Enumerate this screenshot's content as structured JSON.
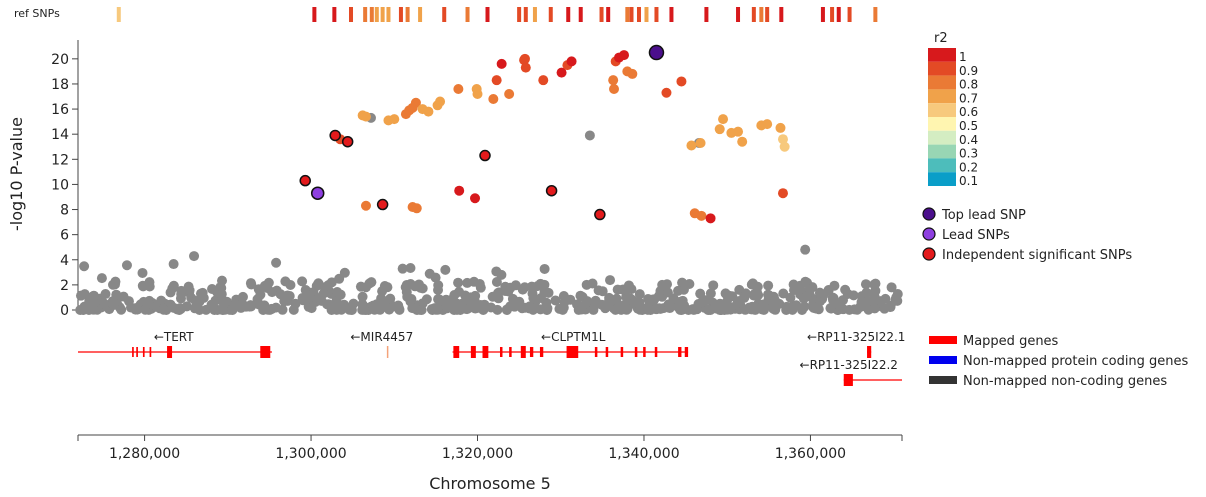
{
  "chart_data": {
    "type": "scatter",
    "title": "",
    "xlabel": "Chromosome 5",
    "ylabel": "-log10 P-value",
    "xlim": [
      1272000,
      1371000
    ],
    "ylim": [
      0,
      21.5
    ],
    "xticks": [
      {
        "value": 1280000,
        "label": "1,280,000"
      },
      {
        "value": 1300000,
        "label": "1,300,000"
      },
      {
        "value": 1320000,
        "label": "1,320,000"
      },
      {
        "value": 1340000,
        "label": "1,340,000"
      },
      {
        "value": 1360000,
        "label": "1,360,000"
      }
    ],
    "yticks": [
      0,
      2,
      4,
      6,
      8,
      10,
      12,
      14,
      16,
      18,
      20
    ],
    "ref_snps_label": "ref SNPs",
    "ref_snps": [
      {
        "x": 1276900,
        "r2": 0.6
      },
      {
        "x": 1300400,
        "r2": 1.0
      },
      {
        "x": 1302800,
        "r2": 1.0
      },
      {
        "x": 1304800,
        "r2": 0.9
      },
      {
        "x": 1306500,
        "r2": 0.8
      },
      {
        "x": 1307300,
        "r2": 0.8
      },
      {
        "x": 1307900,
        "r2": 0.7
      },
      {
        "x": 1308600,
        "r2": 0.7
      },
      {
        "x": 1309300,
        "r2": 0.7
      },
      {
        "x": 1310800,
        "r2": 0.9
      },
      {
        "x": 1311600,
        "r2": 0.8
      },
      {
        "x": 1313100,
        "r2": 0.7
      },
      {
        "x": 1316000,
        "r2": 0.9
      },
      {
        "x": 1318800,
        "r2": 0.8
      },
      {
        "x": 1321200,
        "r2": 1.0
      },
      {
        "x": 1325000,
        "r2": 0.9
      },
      {
        "x": 1325800,
        "r2": 0.9
      },
      {
        "x": 1326900,
        "r2": 0.7
      },
      {
        "x": 1328800,
        "r2": 0.9
      },
      {
        "x": 1330900,
        "r2": 1.0
      },
      {
        "x": 1332400,
        "r2": 1.0
      },
      {
        "x": 1334900,
        "r2": 0.9
      },
      {
        "x": 1335700,
        "r2": 1.0
      },
      {
        "x": 1338000,
        "r2": 0.8
      },
      {
        "x": 1338500,
        "r2": 0.9
      },
      {
        "x": 1339400,
        "r2": 0.9
      },
      {
        "x": 1340300,
        "r2": 0.7
      },
      {
        "x": 1341500,
        "r2": 0.9
      },
      {
        "x": 1343300,
        "r2": 1.0
      },
      {
        "x": 1347500,
        "r2": 1.0
      },
      {
        "x": 1351300,
        "r2": 1.0
      },
      {
        "x": 1353200,
        "r2": 0.9
      },
      {
        "x": 1354100,
        "r2": 0.8
      },
      {
        "x": 1354800,
        "r2": 0.9
      },
      {
        "x": 1356500,
        "r2": 1.0
      },
      {
        "x": 1361500,
        "r2": 1.0
      },
      {
        "x": 1362600,
        "r2": 0.9
      },
      {
        "x": 1363400,
        "r2": 1.0
      },
      {
        "x": 1364700,
        "r2": 0.9
      },
      {
        "x": 1367800,
        "r2": 0.8
      }
    ],
    "r2_legend": {
      "title": "r2",
      "levels": [
        {
          "label": "1",
          "color": "#d7191c"
        },
        {
          "label": "0.9",
          "color": "#e34a25"
        },
        {
          "label": "0.8",
          "color": "#ea7a35"
        },
        {
          "label": "0.7",
          "color": "#f0a24a"
        },
        {
          "label": "0.6",
          "color": "#f7c97d"
        },
        {
          "label": "0.5",
          "color": "#fff5b0"
        },
        {
          "label": "0.4",
          "color": "#d4edc2"
        },
        {
          "label": "0.3",
          "color": "#98d6b4"
        },
        {
          "label": "0.2",
          "color": "#4dbdbb"
        },
        {
          "label": "0.1",
          "color": "#0a9ec8"
        }
      ]
    },
    "snp_legend": [
      {
        "label": "Top lead SNP",
        "color": "#4b0f8c"
      },
      {
        "label": "Lead SNPs",
        "color": "#8e3fe0"
      },
      {
        "label": "Independent significant SNPs",
        "color": "#e31a1c"
      }
    ],
    "gene_legend": [
      {
        "label": "Mapped genes",
        "color": "#ff0000"
      },
      {
        "label": "Non-mapped protein coding genes",
        "color": "#0000ee"
      },
      {
        "label": "Non-mapped non-coding genes",
        "color": "#333333"
      }
    ],
    "colors": {
      "background_snp": "#888888",
      "top_lead": "#4b0f8c",
      "lead": "#8e3fe0",
      "independent": "#e31a1c",
      "gene": "#ff0000",
      "gene_light": "#f4a37a"
    },
    "colored_snps": [
      {
        "x": 1303500,
        "y": 13.6,
        "r2": 0.9
      },
      {
        "x": 1306200,
        "y": 15.5,
        "r2": 0.7
      },
      {
        "x": 1306600,
        "y": 15.4,
        "r2": 0.7
      },
      {
        "x": 1306600,
        "y": 8.3,
        "r2": 0.8
      },
      {
        "x": 1309300,
        "y": 15.1,
        "r2": 0.7
      },
      {
        "x": 1310000,
        "y": 15.2,
        "r2": 0.7
      },
      {
        "x": 1311400,
        "y": 15.6,
        "r2": 0.8
      },
      {
        "x": 1311800,
        "y": 15.9,
        "r2": 0.8
      },
      {
        "x": 1312200,
        "y": 16.1,
        "r2": 0.8
      },
      {
        "x": 1312600,
        "y": 16.5,
        "r2": 0.8
      },
      {
        "x": 1313400,
        "y": 16.0,
        "r2": 0.7
      },
      {
        "x": 1314100,
        "y": 15.8,
        "r2": 0.7
      },
      {
        "x": 1315200,
        "y": 16.3,
        "r2": 0.7
      },
      {
        "x": 1315500,
        "y": 16.6,
        "r2": 0.7
      },
      {
        "x": 1312200,
        "y": 8.2,
        "r2": 0.8
      },
      {
        "x": 1312700,
        "y": 8.1,
        "r2": 0.8
      },
      {
        "x": 1317700,
        "y": 17.6,
        "r2": 0.8
      },
      {
        "x": 1317800,
        "y": 9.5,
        "r2": 1.0
      },
      {
        "x": 1319900,
        "y": 17.6,
        "r2": 0.7
      },
      {
        "x": 1320000,
        "y": 17.2,
        "r2": 0.7
      },
      {
        "x": 1319700,
        "y": 8.9,
        "r2": 1.0
      },
      {
        "x": 1321900,
        "y": 16.8,
        "r2": 0.8
      },
      {
        "x": 1322300,
        "y": 18.3,
        "r2": 0.9
      },
      {
        "x": 1322900,
        "y": 19.6,
        "r2": 1.0
      },
      {
        "x": 1323800,
        "y": 17.2,
        "r2": 0.8
      },
      {
        "x": 1325600,
        "y": 19.9,
        "r2": 0.9
      },
      {
        "x": 1325800,
        "y": 19.3,
        "r2": 0.9
      },
      {
        "x": 1325700,
        "y": 20.0,
        "r2": 0.9
      },
      {
        "x": 1327900,
        "y": 18.3,
        "r2": 0.9
      },
      {
        "x": 1330100,
        "y": 18.9,
        "r2": 1.0
      },
      {
        "x": 1330800,
        "y": 19.5,
        "r2": 0.9
      },
      {
        "x": 1331300,
        "y": 19.8,
        "r2": 1.0
      },
      {
        "x": 1336300,
        "y": 18.3,
        "r2": 0.8
      },
      {
        "x": 1336400,
        "y": 17.6,
        "r2": 0.8
      },
      {
        "x": 1336600,
        "y": 19.8,
        "r2": 0.9
      },
      {
        "x": 1337000,
        "y": 20.1,
        "r2": 1.0
      },
      {
        "x": 1337600,
        "y": 20.3,
        "r2": 1.0
      },
      {
        "x": 1338000,
        "y": 19.0,
        "r2": 0.8
      },
      {
        "x": 1338600,
        "y": 18.8,
        "r2": 0.8
      },
      {
        "x": 1342700,
        "y": 17.3,
        "r2": 0.9
      },
      {
        "x": 1344500,
        "y": 18.2,
        "r2": 0.9
      },
      {
        "x": 1345700,
        "y": 13.1,
        "r2": 0.7
      },
      {
        "x": 1346800,
        "y": 13.3,
        "r2": 0.7
      },
      {
        "x": 1349100,
        "y": 14.4,
        "r2": 0.7
      },
      {
        "x": 1349500,
        "y": 15.2,
        "r2": 0.7
      },
      {
        "x": 1350500,
        "y": 14.1,
        "r2": 0.7
      },
      {
        "x": 1351300,
        "y": 14.2,
        "r2": 0.7
      },
      {
        "x": 1351800,
        "y": 13.4,
        "r2": 0.7
      },
      {
        "x": 1354100,
        "y": 14.7,
        "r2": 0.7
      },
      {
        "x": 1354800,
        "y": 14.8,
        "r2": 0.7
      },
      {
        "x": 1356400,
        "y": 14.5,
        "r2": 0.7
      },
      {
        "x": 1356700,
        "y": 13.6,
        "r2": 0.6
      },
      {
        "x": 1356900,
        "y": 13.0,
        "r2": 0.6
      },
      {
        "x": 1356700,
        "y": 9.3,
        "r2": 0.9
      },
      {
        "x": 1346100,
        "y": 7.7,
        "r2": 0.8
      },
      {
        "x": 1346900,
        "y": 7.5,
        "r2": 0.8
      },
      {
        "x": 1348000,
        "y": 7.3,
        "r2": 1.0
      }
    ],
    "gray_snps_highlight": [
      {
        "x": 1307200,
        "y": 15.3
      },
      {
        "x": 1333500,
        "y": 13.9
      },
      {
        "x": 1346600,
        "y": 13.3
      }
    ],
    "lead_snps": [
      {
        "x": 1341500,
        "y": 20.5,
        "kind": "top_lead"
      },
      {
        "x": 1300800,
        "y": 9.3,
        "kind": "lead"
      },
      {
        "x": 1299300,
        "y": 10.3,
        "kind": "independent"
      },
      {
        "x": 1302900,
        "y": 13.9,
        "kind": "independent"
      },
      {
        "x": 1304400,
        "y": 13.4,
        "kind": "independent"
      },
      {
        "x": 1308600,
        "y": 8.4,
        "kind": "independent"
      },
      {
        "x": 1320900,
        "y": 12.3,
        "kind": "independent"
      },
      {
        "x": 1328900,
        "y": 9.5,
        "kind": "independent"
      },
      {
        "x": 1334700,
        "y": 7.6,
        "kind": "independent"
      }
    ],
    "genes": [
      {
        "name": "←TERT",
        "start": 1272000,
        "end": 1295300,
        "row": 0,
        "exons": [
          [
            1278500,
            1278700
          ],
          [
            1279000,
            1279200
          ],
          [
            1279800,
            1280000
          ],
          [
            1280600,
            1280800
          ],
          [
            1282700,
            1283300
          ],
          [
            1293900,
            1295100
          ]
        ]
      },
      {
        "name": "←MIR4457",
        "start": 1309200,
        "end": 1309400,
        "row": 0,
        "light": true,
        "exons": []
      },
      {
        "name": "←CLPTM1L",
        "start": 1317000,
        "end": 1345300,
        "row": 0,
        "exons": [
          [
            1317100,
            1317800
          ],
          [
            1319200,
            1319800
          ],
          [
            1320600,
            1321300
          ],
          [
            1322700,
            1323000
          ],
          [
            1323800,
            1324100
          ],
          [
            1325200,
            1325800
          ],
          [
            1326300,
            1326700
          ],
          [
            1327500,
            1327900
          ],
          [
            1330700,
            1332100
          ],
          [
            1334100,
            1334400
          ],
          [
            1335400,
            1335700
          ],
          [
            1337200,
            1337500
          ],
          [
            1338900,
            1339200
          ],
          [
            1339900,
            1340200
          ],
          [
            1341300,
            1341600
          ],
          [
            1344100,
            1344500
          ],
          [
            1344900,
            1345300
          ]
        ]
      },
      {
        "name": "←RP11-325I22.1",
        "start": 1366800,
        "end": 1367300,
        "row": 0,
        "exons": [
          [
            1366800,
            1367300
          ]
        ]
      },
      {
        "name": "←RP11-325I22.2",
        "start": 1364000,
        "end": 1371000,
        "row": 1,
        "exons": [
          [
            1364000,
            1365100
          ]
        ]
      }
    ]
  }
}
